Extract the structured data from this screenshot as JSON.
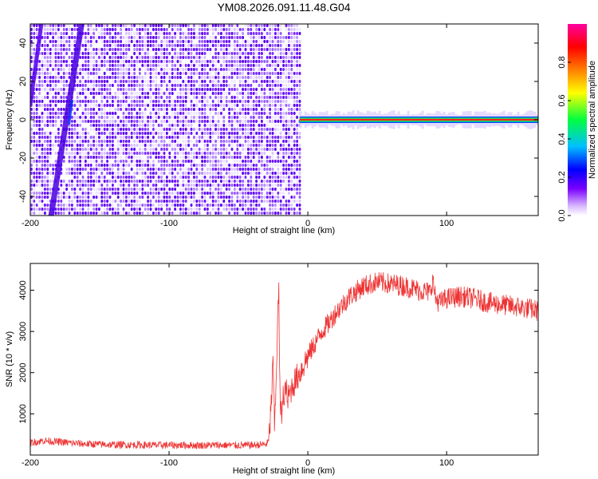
{
  "title": "YM08.2026.091.11.48.G04",
  "chart_data": [
    {
      "type": "heatmap",
      "xlabel": "Height of straight line (km)",
      "ylabel": "Frequency (Hz)",
      "xlim": [
        -200,
        166
      ],
      "ylim": [
        -50,
        50
      ],
      "xticks": [
        "-200",
        "-100",
        "0",
        "100"
      ],
      "xtick_values": [
        -200,
        -100,
        0,
        100
      ],
      "yticks": [
        "40",
        "20",
        "0",
        "-20",
        "-40"
      ],
      "ytick_values": [
        40,
        20,
        0,
        -20,
        -40
      ],
      "colorbar": {
        "label": "Normalized spectral amplitude",
        "range": [
          0,
          1
        ],
        "ticks": [
          "0.0",
          "0.2",
          "0.4",
          "0.6",
          "0.8"
        ],
        "tick_values": [
          0.0,
          0.2,
          0.4,
          0.6,
          0.8
        ],
        "colors": [
          "#ffffff",
          "#7a00ff",
          "#0000ff",
          "#00bfff",
          "#00ff40",
          "#ffff00",
          "#ff7f00",
          "#ff0000",
          "#ff00a0"
        ]
      },
      "noise_region_x": [
        -200,
        -6
      ],
      "signal_band": {
        "x": [
          -6,
          166
        ],
        "center_freq": 0
      }
    },
    {
      "type": "line",
      "xlabel": "Height of straight line (km)",
      "ylabel": "SNR (10 * v/v)",
      "xlim": [
        -200,
        166
      ],
      "ylim": [
        0,
        4650
      ],
      "xticks": [
        "-200",
        "-100",
        "0",
        "100"
      ],
      "xtick_values": [
        -200,
        -100,
        0,
        100
      ],
      "yticks": [
        "1000",
        "2000",
        "3000",
        "4000"
      ],
      "ytick_values": [
        1000,
        2000,
        3000,
        4000
      ],
      "color": "#ee3333",
      "series": [
        {
          "x": [
            -200,
            -190,
            -180,
            -170,
            -160,
            -150,
            -140,
            -130,
            -120,
            -110,
            -100,
            -90,
            -80,
            -70,
            -60,
            -50,
            -40,
            -30,
            -28,
            -26,
            -25,
            -24,
            -22,
            -21,
            -20,
            -19,
            -18,
            -17,
            -16,
            -15,
            -12,
            -10,
            -5,
            0,
            5,
            10,
            15,
            20,
            25,
            30,
            40,
            50,
            60,
            70,
            80,
            88,
            90,
            92,
            95,
            100,
            110,
            120,
            130,
            140,
            150,
            160,
            166
          ],
          "y": [
            300,
            350,
            320,
            290,
            270,
            260,
            250,
            250,
            245,
            240,
            240,
            240,
            235,
            240,
            240,
            235,
            240,
            260,
            350,
            1500,
            2300,
            600,
            2900,
            4100,
            1200,
            900,
            1600,
            1100,
            1800,
            1300,
            1600,
            1750,
            2050,
            2400,
            2700,
            3000,
            3200,
            3450,
            3650,
            3850,
            4100,
            4200,
            4150,
            4100,
            4000,
            3950,
            4250,
            3800,
            3700,
            3800,
            3850,
            3800,
            3700,
            3650,
            3600,
            3550,
            3500
          ]
        }
      ]
    }
  ]
}
